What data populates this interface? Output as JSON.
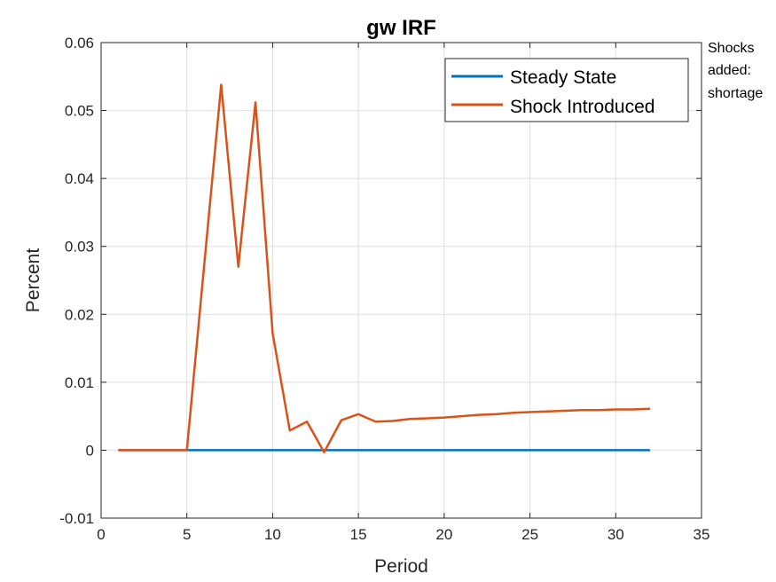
{
  "chart_data": {
    "type": "line",
    "title": "gw IRF",
    "xlabel": "Period",
    "ylabel": "Percent",
    "xlim": [
      0,
      35
    ],
    "ylim": [
      -0.01,
      0.06
    ],
    "xticks": [
      "0",
      "5",
      "10",
      "15",
      "20",
      "25",
      "30",
      "35"
    ],
    "yticks": [
      "-0.01",
      "0",
      "0.01",
      "0.02",
      "0.03",
      "0.04",
      "0.05",
      "0.06"
    ],
    "grid": true,
    "legend_position": "top-right",
    "x": [
      1,
      2,
      3,
      4,
      5,
      6,
      7,
      8,
      9,
      10,
      11,
      12,
      13,
      14,
      15,
      16,
      17,
      18,
      19,
      20,
      21,
      22,
      23,
      24,
      25,
      26,
      27,
      28,
      29,
      30,
      31,
      32
    ],
    "series": [
      {
        "name": "Steady State",
        "color": "#0072BD",
        "values": [
          0,
          0,
          0,
          0,
          0,
          0,
          0,
          0,
          0,
          0,
          0,
          0,
          0,
          0,
          0,
          0,
          0,
          0,
          0,
          0,
          0,
          0,
          0,
          0,
          0,
          0,
          0,
          0,
          0,
          0,
          0,
          0
        ]
      },
      {
        "name": "Shock Introduced",
        "color": "#D95319",
        "values": [
          0,
          0,
          0,
          0,
          0,
          0.027,
          0.0538,
          0.027,
          0.0512,
          0.0172,
          0.0029,
          0.0042,
          -0.0003,
          0.0044,
          0.0053,
          0.0042,
          0.0043,
          0.0046,
          0.0047,
          0.0048,
          0.005,
          0.0052,
          0.0053,
          0.0055,
          0.0056,
          0.0057,
          0.0058,
          0.0059,
          0.0059,
          0.006,
          0.006,
          0.0061
        ]
      }
    ],
    "annotation": [
      "Shocks",
      "added:",
      "shortage"
    ]
  }
}
